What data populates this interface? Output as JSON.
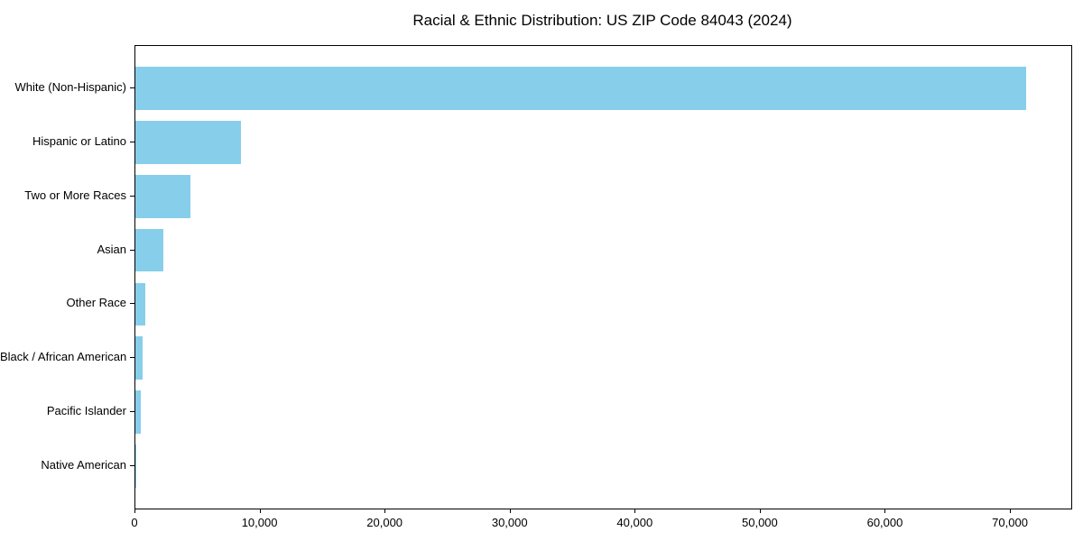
{
  "title": "Racial & Ethnic Distribution: US ZIP Code 84043 (2024)",
  "chart_data": {
    "type": "bar",
    "orientation": "horizontal",
    "title": "Racial & Ethnic Distribution: US ZIP Code 84043 (2024)",
    "xlabel": "",
    "ylabel": "",
    "categories": [
      "White (Non-Hispanic)",
      "Hispanic or Latino",
      "Two or More Races",
      "Asian",
      "Other Race",
      "Black / African American",
      "Pacific Islander",
      "Native American"
    ],
    "values": [
      71250,
      8450,
      4430,
      2220,
      820,
      580,
      430,
      100
    ],
    "xlim": [
      0,
      74830
    ],
    "xticks": [
      0,
      10000,
      20000,
      30000,
      40000,
      50000,
      60000,
      70000
    ],
    "xtick_labels": [
      "0",
      "10,000",
      "20,000",
      "30,000",
      "40,000",
      "50,000",
      "60,000",
      "70,000"
    ],
    "bar_color": "#87CEEB",
    "grid": false,
    "legend": null
  }
}
